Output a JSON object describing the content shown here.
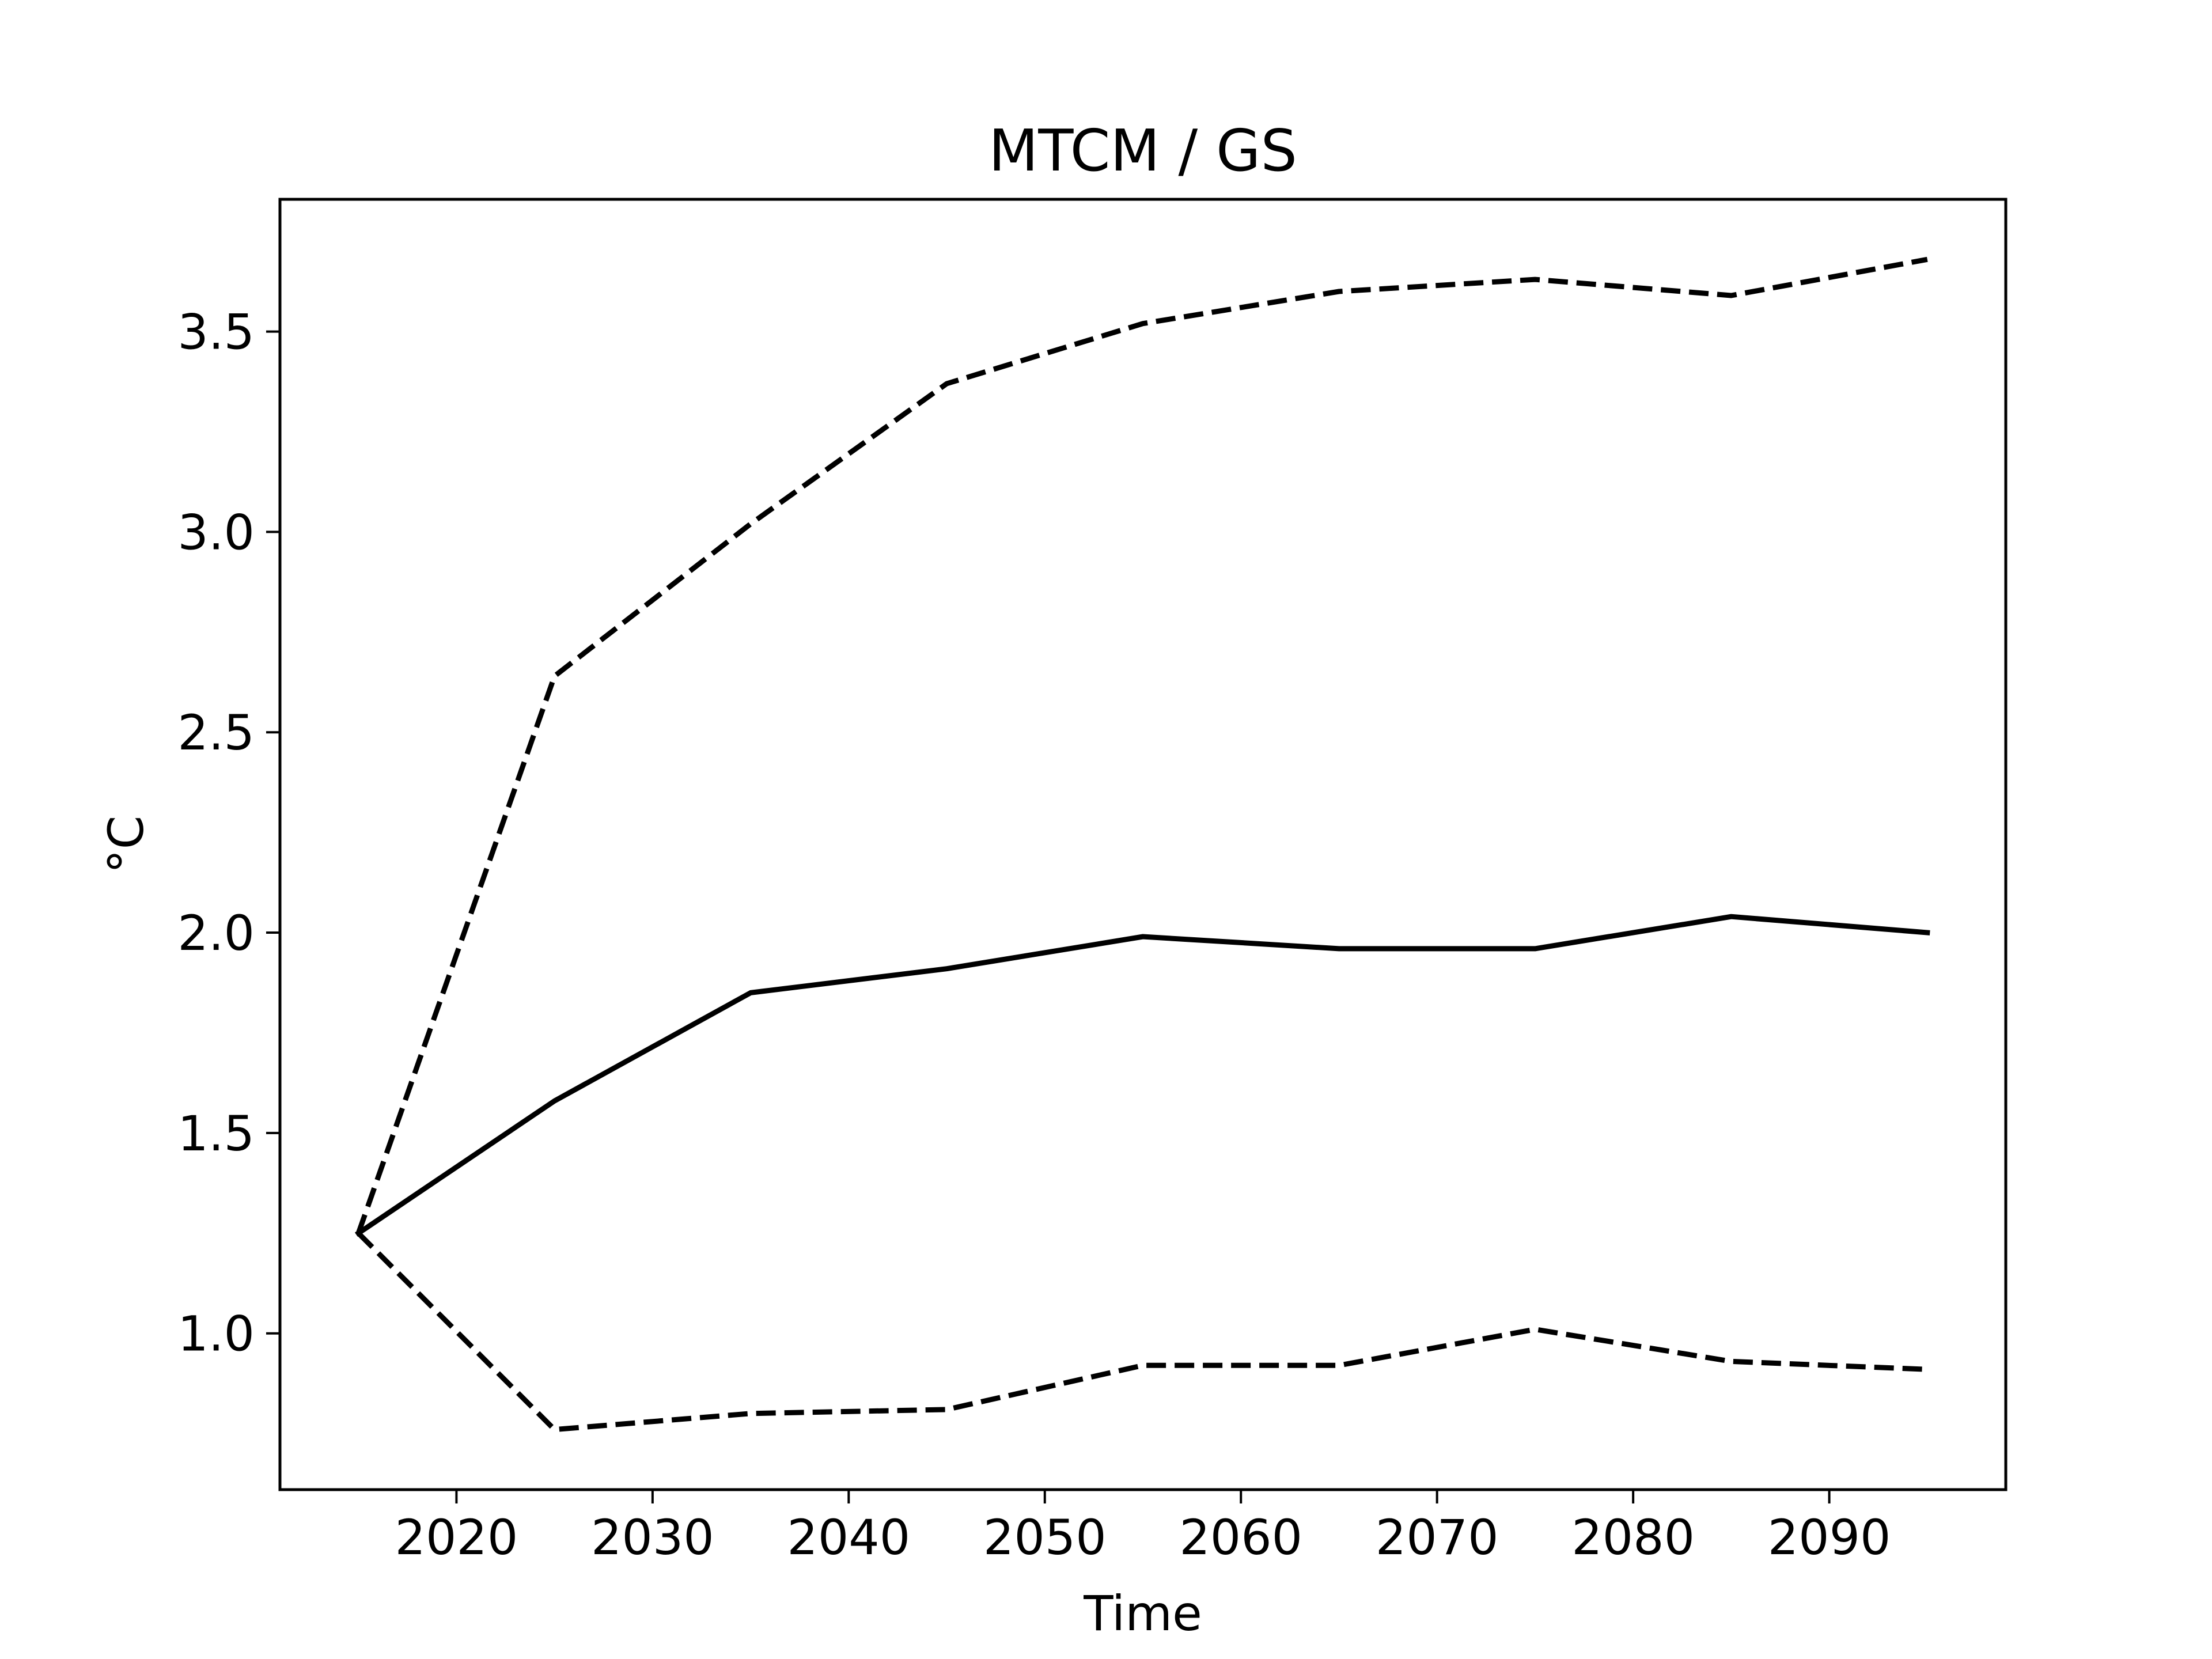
{
  "chart_data": {
    "type": "line",
    "title": "MTCM / GS",
    "xlabel": "Time",
    "ylabel": "°C",
    "xlim": [
      2011,
      2099
    ],
    "ylim": [
      0.61,
      3.83
    ],
    "xticks": [
      2020,
      2030,
      2040,
      2050,
      2060,
      2070,
      2080,
      2090
    ],
    "xtick_labels": [
      "2020",
      "2030",
      "2040",
      "2050",
      "2060",
      "2070",
      "2080",
      "2090"
    ],
    "yticks": [
      1.0,
      1.5,
      2.0,
      2.5,
      3.0,
      3.5
    ],
    "ytick_labels": [
      "1.0",
      "1.5",
      "2.0",
      "2.5",
      "3.0",
      "3.5"
    ],
    "grid": false,
    "legend": "none",
    "x": [
      2015,
      2025,
      2035,
      2045,
      2055,
      2065,
      2075,
      2085,
      2095
    ],
    "series": [
      {
        "style": "solid",
        "color": "#000000",
        "values": [
          1.25,
          1.58,
          1.85,
          1.91,
          1.99,
          1.96,
          1.96,
          2.04,
          2.0
        ]
      },
      {
        "style": "dashed",
        "color": "#000000",
        "values": [
          1.25,
          2.64,
          3.02,
          3.37,
          3.52,
          3.6,
          3.63,
          3.59,
          3.68
        ]
      },
      {
        "style": "dashed",
        "color": "#000000",
        "values": [
          1.25,
          0.76,
          0.8,
          0.81,
          0.92,
          0.92,
          1.01,
          0.93,
          0.91
        ]
      }
    ]
  }
}
